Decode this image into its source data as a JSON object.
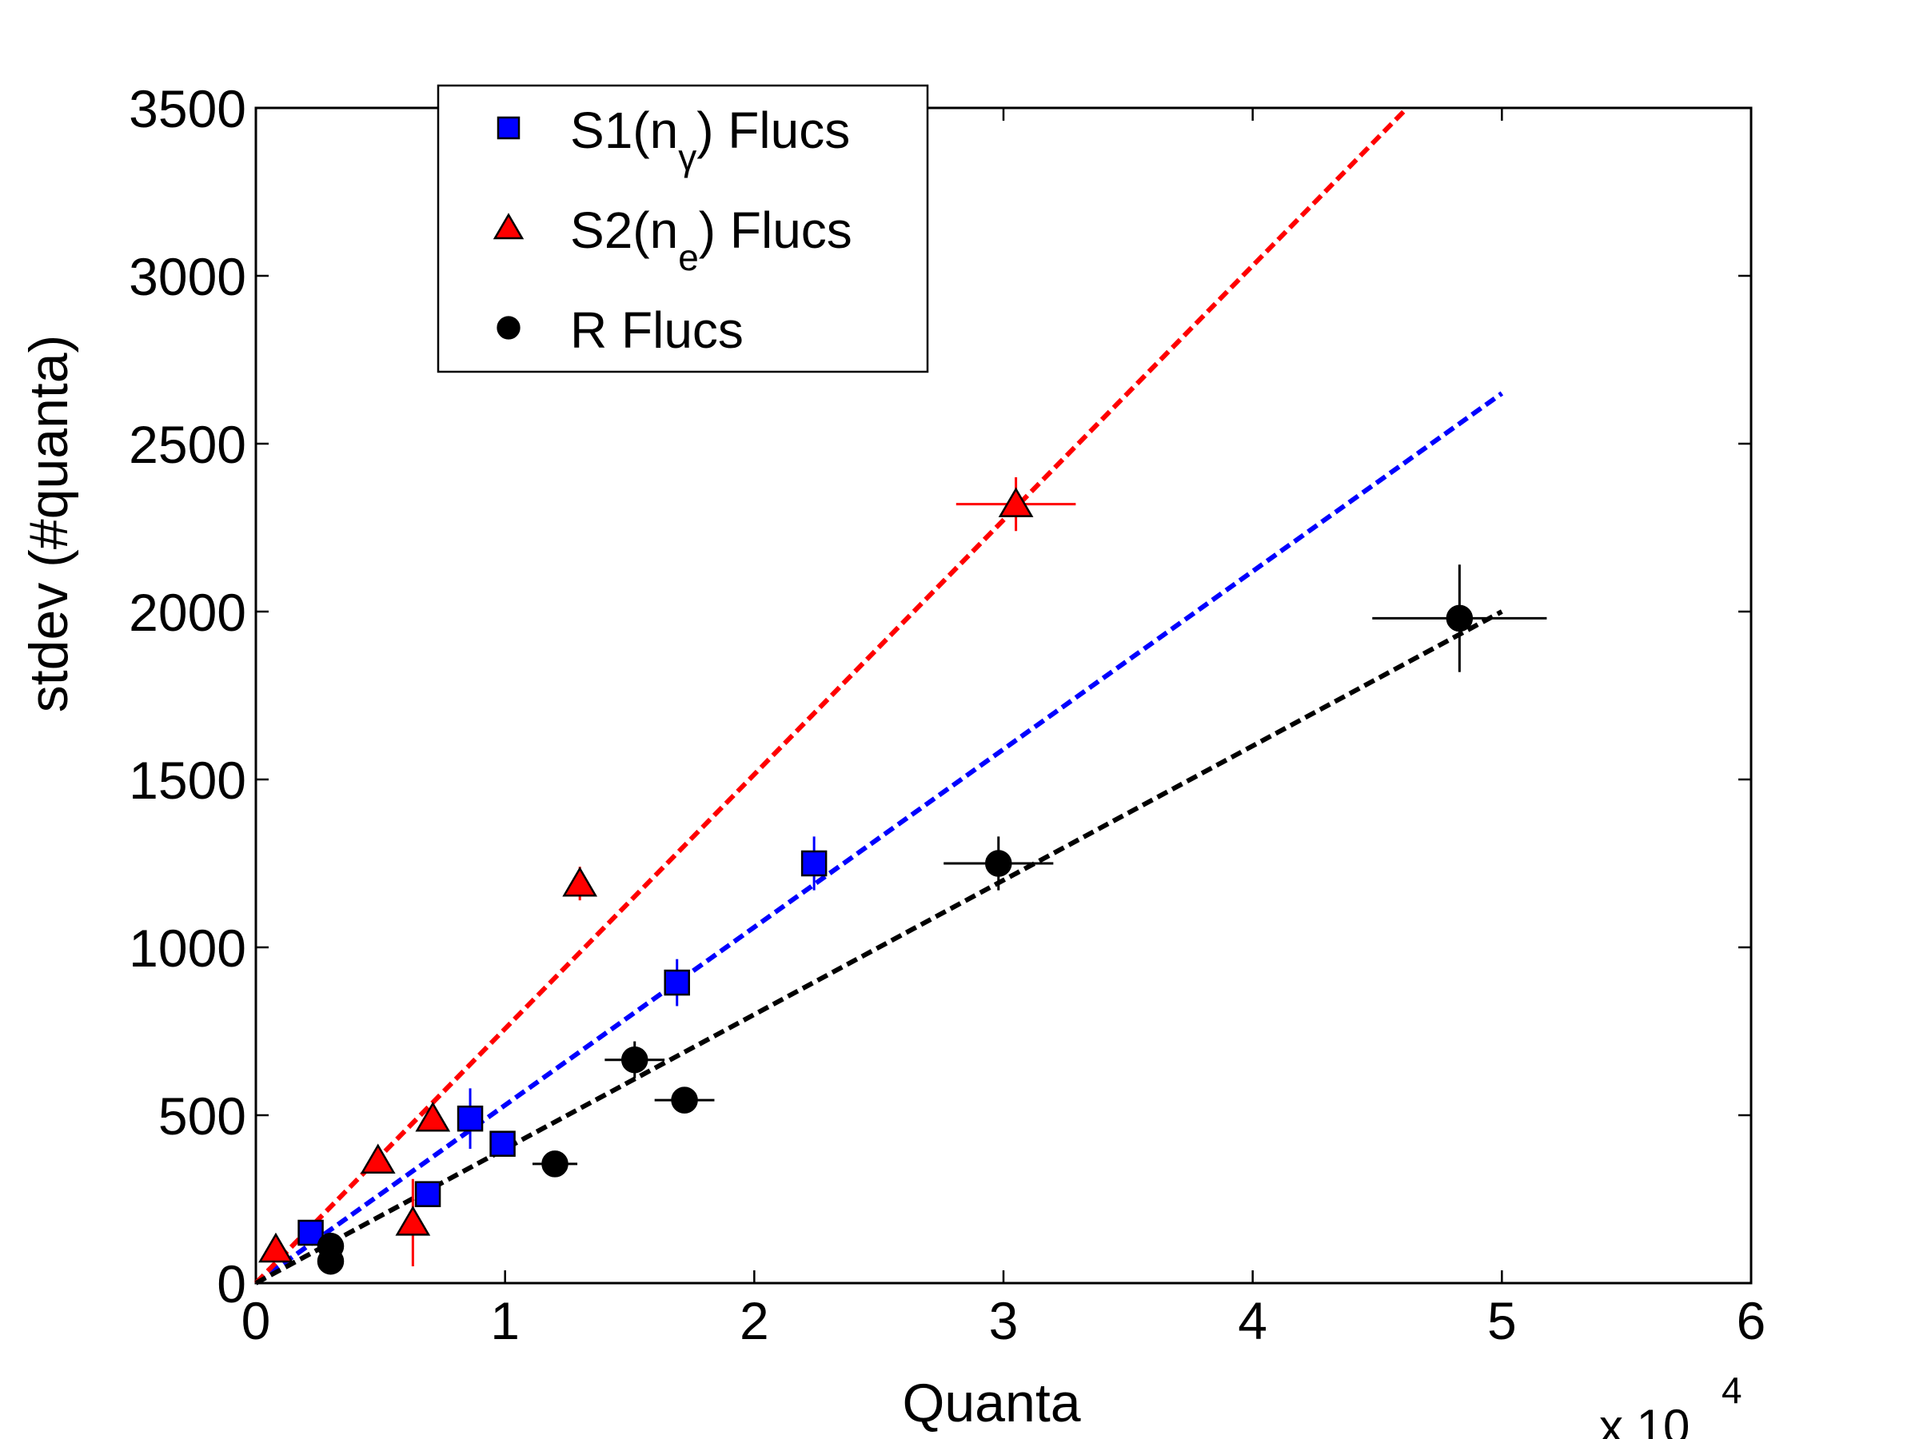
{
  "chart_data": {
    "type": "scatter",
    "xlabel": "Quanta",
    "ylabel": "stdev (#quanta)",
    "x_multiplier": {
      "prefix": "x 10",
      "exponent": "4"
    },
    "xlim": [
      0,
      6
    ],
    "ylim": [
      0,
      3500
    ],
    "x_ticks": [
      "0",
      "1",
      "2",
      "3",
      "4",
      "5",
      "6"
    ],
    "y_ticks": [
      "0",
      "500",
      "1000",
      "1500",
      "2000",
      "2500",
      "3000",
      "3500"
    ],
    "grid": false,
    "legend_position": "top-left",
    "series": [
      {
        "key": "s1",
        "legend": {
          "text": "S1(n",
          "sub": "γ",
          "suffix": ") Flucs"
        },
        "marker": "square",
        "color": "#0000ff",
        "points": [
          {
            "x": 0.22,
            "y": 150,
            "xerr": 0.0,
            "yerr": 25
          },
          {
            "x": 0.69,
            "y": 265,
            "xerr": 0.0,
            "yerr": 30
          },
          {
            "x": 0.86,
            "y": 490,
            "xerr": 0.0,
            "yerr": 90
          },
          {
            "x": 0.99,
            "y": 415,
            "xerr": 0.0,
            "yerr": 30
          },
          {
            "x": 1.69,
            "y": 895,
            "xerr": 0.0,
            "yerr": 70
          },
          {
            "x": 2.24,
            "y": 1250,
            "xerr": 0.0,
            "yerr": 80
          }
        ],
        "fit": {
          "x0": 0.0,
          "y0": 0,
          "x1": 5.0,
          "y1": 2650
        }
      },
      {
        "key": "s2",
        "legend": {
          "text": "S2(n",
          "sub": "e",
          "suffix": ") Flucs"
        },
        "marker": "triangle",
        "color": "#ff0000",
        "points": [
          {
            "x": 0.08,
            "y": 100,
            "xerr": 0.0,
            "yerr": 20
          },
          {
            "x": 0.49,
            "y": 365,
            "xerr": 0.0,
            "yerr": 25
          },
          {
            "x": 0.63,
            "y": 180,
            "xerr": 0.0,
            "yerr": 130
          },
          {
            "x": 0.71,
            "y": 490,
            "xerr": 0.0,
            "yerr": 25
          },
          {
            "x": 1.3,
            "y": 1190,
            "xerr": 0.0,
            "yerr": 50
          },
          {
            "x": 3.05,
            "y": 2320,
            "xerr": 0.24,
            "yerr": 80
          }
        ],
        "fit": {
          "x0": 0.0,
          "y0": 0,
          "x1": 4.62,
          "y1": 3500
        }
      },
      {
        "key": "r",
        "legend": {
          "text": "R Flucs",
          "sub": "",
          "suffix": ""
        },
        "marker": "circle",
        "color": "#000000",
        "points": [
          {
            "x": 0.3,
            "y": 65,
            "xerr": 0.0,
            "yerr": 20
          },
          {
            "x": 0.3,
            "y": 110,
            "xerr": 0.0,
            "yerr": 20
          },
          {
            "x": 1.2,
            "y": 355,
            "xerr": 0.09,
            "yerr": 20
          },
          {
            "x": 1.52,
            "y": 665,
            "xerr": 0.12,
            "yerr": 55
          },
          {
            "x": 1.72,
            "y": 545,
            "xerr": 0.12,
            "yerr": 30
          },
          {
            "x": 2.98,
            "y": 1250,
            "xerr": 0.22,
            "yerr": 80
          },
          {
            "x": 4.83,
            "y": 1980,
            "xerr": 0.35,
            "yerr": 160
          }
        ],
        "fit": {
          "x0": 0.0,
          "y0": 0,
          "x1": 5.0,
          "y1": 2000
        }
      }
    ]
  }
}
